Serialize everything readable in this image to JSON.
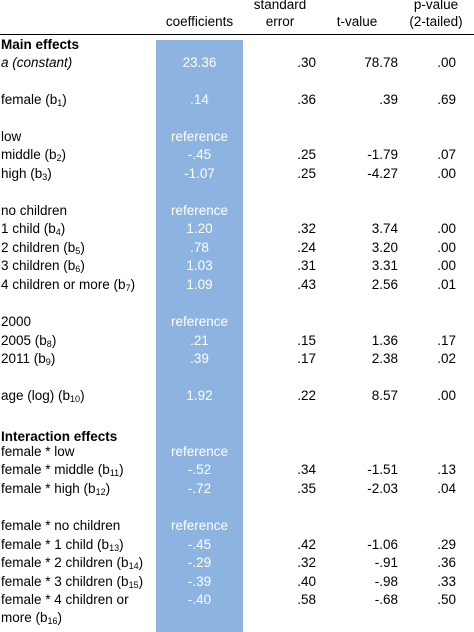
{
  "header": {
    "coefficients": "coefficients",
    "se_line1": "standard",
    "se_line2": "error",
    "tvalue": "t-value",
    "pv_line1": "p-value",
    "pv_line2": "(2-tailed)"
  },
  "sections": {
    "main": "Main effects",
    "interaction": "Interaction effects"
  },
  "rows": [
    {
      "label": "a (constant)",
      "sub": "",
      "suffix": "",
      "coef": "23.36",
      "se": ".30",
      "t": "78.78",
      "p": ".00"
    },
    {
      "label": "female (b",
      "sub": "1",
      "suffix": ")",
      "coef": ".14",
      "se": ".36",
      "t": ".39",
      "p": ".69"
    },
    {
      "label": "low",
      "sub": "",
      "suffix": "",
      "coef": "reference",
      "se": "",
      "t": "",
      "p": ""
    },
    {
      "label": "middle (b",
      "sub": "2",
      "suffix": ")",
      "coef": "-.45",
      "se": ".25",
      "t": "-1.79",
      "p": ".07"
    },
    {
      "label": "high (b",
      "sub": "3",
      "suffix": ")",
      "coef": "-1.07",
      "se": ".25",
      "t": "-4.27",
      "p": ".00"
    },
    {
      "label": "no children",
      "sub": "",
      "suffix": "",
      "coef": "reference",
      "se": "",
      "t": "",
      "p": ""
    },
    {
      "label": "1 child (b",
      "sub": "4",
      "suffix": ")",
      "coef": "1.20",
      "se": ".32",
      "t": "3.74",
      "p": ".00"
    },
    {
      "label": "2 children (b",
      "sub": "5",
      "suffix": ")",
      "coef": ".78",
      "se": ".24",
      "t": "3.20",
      "p": ".00"
    },
    {
      "label": "3 children (b",
      "sub": "6",
      "suffix": ")",
      "coef": "1.03",
      "se": ".31",
      "t": "3.31",
      "p": ".00"
    },
    {
      "label": "4 children or more (b",
      "sub": "7",
      "suffix": ")",
      "coef": "1.09",
      "se": ".43",
      "t": "2.56",
      "p": ".01"
    },
    {
      "label": "2000",
      "sub": "",
      "suffix": "",
      "coef": "reference",
      "se": "",
      "t": "",
      "p": ""
    },
    {
      "label": "2005 (b",
      "sub": "8",
      "suffix": ")",
      "coef": ".21",
      "se": ".15",
      "t": "1.36",
      "p": ".17"
    },
    {
      "label": "2011 (b",
      "sub": "9",
      "suffix": ")",
      "coef": ".39",
      "se": ".17",
      "t": "2.38",
      "p": ".02"
    },
    {
      "label": "age (log) (b",
      "sub": "10",
      "suffix": ")",
      "coef": "1.92",
      "se": ".22",
      "t": "8.57",
      "p": ".00"
    },
    {
      "label": "female * low",
      "sub": "",
      "suffix": "",
      "coef": "reference",
      "se": "",
      "t": "",
      "p": ""
    },
    {
      "label": "female * middle (b",
      "sub": "11",
      "suffix": ")",
      "coef": "-.52",
      "se": ".34",
      "t": "-1.51",
      "p": ".13"
    },
    {
      "label": "female * high (b",
      "sub": "12",
      "suffix": ")",
      "coef": "-.72",
      "se": ".35",
      "t": "-2.03",
      "p": ".04"
    },
    {
      "label": "female * no children",
      "sub": "",
      "suffix": "",
      "coef": "reference",
      "se": "",
      "t": "",
      "p": ""
    },
    {
      "label": "female * 1 child (b",
      "sub": "13",
      "suffix": ")",
      "coef": "-.45",
      "se": ".42",
      "t": "-1.06",
      "p": ".29"
    },
    {
      "label": "female * 2 children (b",
      "sub": "14",
      "suffix": ")",
      "coef": "-.29",
      "se": ".32",
      "t": "-.91",
      "p": ".36"
    },
    {
      "label": "female * 3 children (b",
      "sub": "15",
      "suffix": ")",
      "coef": "-.39",
      "se": ".40",
      "t": "-.98",
      "p": ".33"
    },
    {
      "label": "female * 4 children or",
      "sub": "",
      "suffix": "",
      "coef": "-.40",
      "se": ".58",
      "t": "-.68",
      "p": ".50"
    },
    {
      "label": "more (b",
      "sub": "16",
      "suffix": ")",
      "coef": "",
      "se": "",
      "t": "",
      "p": ""
    }
  ],
  "colors": {
    "highlight": "#8db4e0",
    "highlight_text": "#ffffff"
  }
}
